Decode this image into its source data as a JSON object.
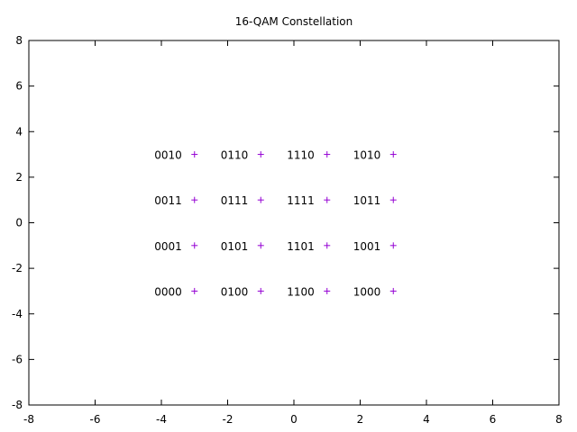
{
  "chart_data": {
    "type": "scatter",
    "title": "16-QAM Constellation",
    "xlabel": "",
    "ylabel": "",
    "xlim": [
      -8,
      8
    ],
    "ylim": [
      -8,
      8
    ],
    "xticks": [
      "-8",
      "-6",
      "-4",
      "-2",
      "0",
      "2",
      "4",
      "6",
      "8"
    ],
    "yticks": [
      "-8",
      "-6",
      "-4",
      "-2",
      "0",
      "2",
      "4",
      "6",
      "8"
    ],
    "grid": false,
    "marker": "plus",
    "point_color": "#9400d3",
    "points": [
      {
        "x": -3,
        "y": 3,
        "label": "0010"
      },
      {
        "x": -1,
        "y": 3,
        "label": "0110"
      },
      {
        "x": 1,
        "y": 3,
        "label": "1110"
      },
      {
        "x": 3,
        "y": 3,
        "label": "1010"
      },
      {
        "x": -3,
        "y": 1,
        "label": "0011"
      },
      {
        "x": -1,
        "y": 1,
        "label": "0111"
      },
      {
        "x": 1,
        "y": 1,
        "label": "1111"
      },
      {
        "x": 3,
        "y": 1,
        "label": "1011"
      },
      {
        "x": -3,
        "y": -1,
        "label": "0001"
      },
      {
        "x": -1,
        "y": -1,
        "label": "0101"
      },
      {
        "x": 1,
        "y": -1,
        "label": "1101"
      },
      {
        "x": 3,
        "y": -1,
        "label": "1001"
      },
      {
        "x": -3,
        "y": -3,
        "label": "0000"
      },
      {
        "x": -1,
        "y": -3,
        "label": "0100"
      },
      {
        "x": 1,
        "y": -3,
        "label": "1100"
      },
      {
        "x": 3,
        "y": -3,
        "label": "1000"
      }
    ]
  }
}
